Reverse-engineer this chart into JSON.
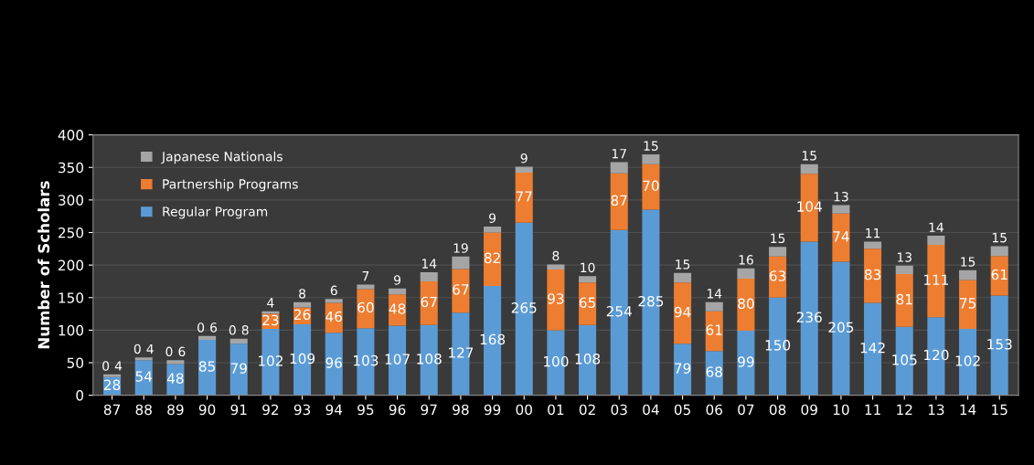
{
  "chart_data": {
    "type": "bar",
    "stacked": true,
    "ylabel": "Number of Scholars",
    "categories": [
      "87",
      "88",
      "89",
      "90",
      "91",
      "92",
      "93",
      "94",
      "95",
      "96",
      "97",
      "98",
      "99",
      "00",
      "01",
      "02",
      "03",
      "04",
      "05",
      "06",
      "07",
      "08",
      "09",
      "10",
      "11",
      "12",
      "13",
      "14",
      "15"
    ],
    "series": [
      {
        "name": "Regular Program",
        "color": "#5b9bd5",
        "values": [
          28,
          54,
          48,
          85,
          79,
          102,
          109,
          96,
          103,
          107,
          108,
          127,
          168,
          265,
          100,
          108,
          254,
          285,
          79,
          68,
          99,
          150,
          236,
          205,
          142,
          105,
          120,
          102,
          153
        ]
      },
      {
        "name": "Partnership Programs",
        "color": "#ed7d31",
        "values": [
          0,
          0,
          0,
          0,
          0,
          23,
          26,
          46,
          60,
          48,
          67,
          67,
          82,
          77,
          93,
          65,
          87,
          70,
          94,
          61,
          80,
          63,
          104,
          74,
          83,
          81,
          111,
          75,
          61
        ]
      },
      {
        "name": "Japanese Nationals",
        "color": "#a5a5a5",
        "values": [
          4,
          4,
          6,
          6,
          8,
          4,
          8,
          6,
          7,
          9,
          14,
          19,
          9,
          9,
          8,
          10,
          17,
          15,
          15,
          14,
          16,
          15,
          15,
          13,
          11,
          13,
          14,
          15,
          15
        ]
      }
    ],
    "ylim": [
      0,
      400
    ],
    "yticks": [
      0,
      50,
      100,
      150,
      200,
      250,
      300,
      350,
      400
    ],
    "grid": "y",
    "legend": "top left",
    "data_labels": true
  }
}
